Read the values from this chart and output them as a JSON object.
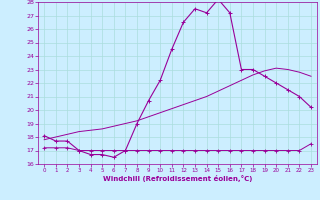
{
  "xlabel": "Windchill (Refroidissement éolien,°C)",
  "bg_color": "#cceeff",
  "line_color": "#990099",
  "grid_color": "#aadddd",
  "xmin": 0,
  "xmax": 23,
  "ymin": 16,
  "ymax": 28,
  "yticks": [
    16,
    17,
    18,
    19,
    20,
    21,
    22,
    23,
    24,
    25,
    26,
    27,
    28
  ],
  "xticks": [
    0,
    1,
    2,
    3,
    4,
    5,
    6,
    7,
    8,
    9,
    10,
    11,
    12,
    13,
    14,
    15,
    16,
    17,
    18,
    19,
    20,
    21,
    22,
    23
  ],
  "main_series_x": [
    0,
    1,
    2,
    3,
    4,
    5,
    6,
    7,
    8,
    9,
    10,
    11,
    12,
    13,
    14,
    15,
    16,
    17,
    18,
    19,
    20,
    21,
    22,
    23
  ],
  "main_series_y": [
    18.1,
    17.7,
    17.7,
    17.0,
    16.7,
    16.7,
    16.5,
    17.0,
    19.0,
    20.7,
    22.2,
    24.5,
    26.5,
    27.5,
    27.2,
    28.2,
    27.2,
    23.0,
    23.0,
    22.5,
    22.0,
    21.5,
    21.0,
    20.2
  ],
  "min_series_x": [
    0,
    1,
    2,
    3,
    4,
    5,
    6,
    7,
    8,
    9,
    10,
    11,
    12,
    13,
    14,
    15,
    16,
    17,
    18,
    19,
    20,
    21,
    22,
    23
  ],
  "min_series_y": [
    17.2,
    17.2,
    17.2,
    17.0,
    17.0,
    17.0,
    17.0,
    17.0,
    17.0,
    17.0,
    17.0,
    17.0,
    17.0,
    17.0,
    17.0,
    17.0,
    17.0,
    17.0,
    17.0,
    17.0,
    17.0,
    17.0,
    17.0,
    17.5
  ],
  "trend_series_x": [
    0,
    1,
    2,
    3,
    4,
    5,
    6,
    7,
    8,
    9,
    10,
    11,
    12,
    13,
    14,
    15,
    16,
    17,
    18,
    19,
    20,
    21,
    22,
    23
  ],
  "trend_series_y": [
    17.8,
    18.0,
    18.2,
    18.4,
    18.5,
    18.6,
    18.8,
    19.0,
    19.2,
    19.5,
    19.8,
    20.1,
    20.4,
    20.7,
    21.0,
    21.4,
    21.8,
    22.2,
    22.6,
    22.9,
    23.1,
    23.0,
    22.8,
    22.5
  ]
}
